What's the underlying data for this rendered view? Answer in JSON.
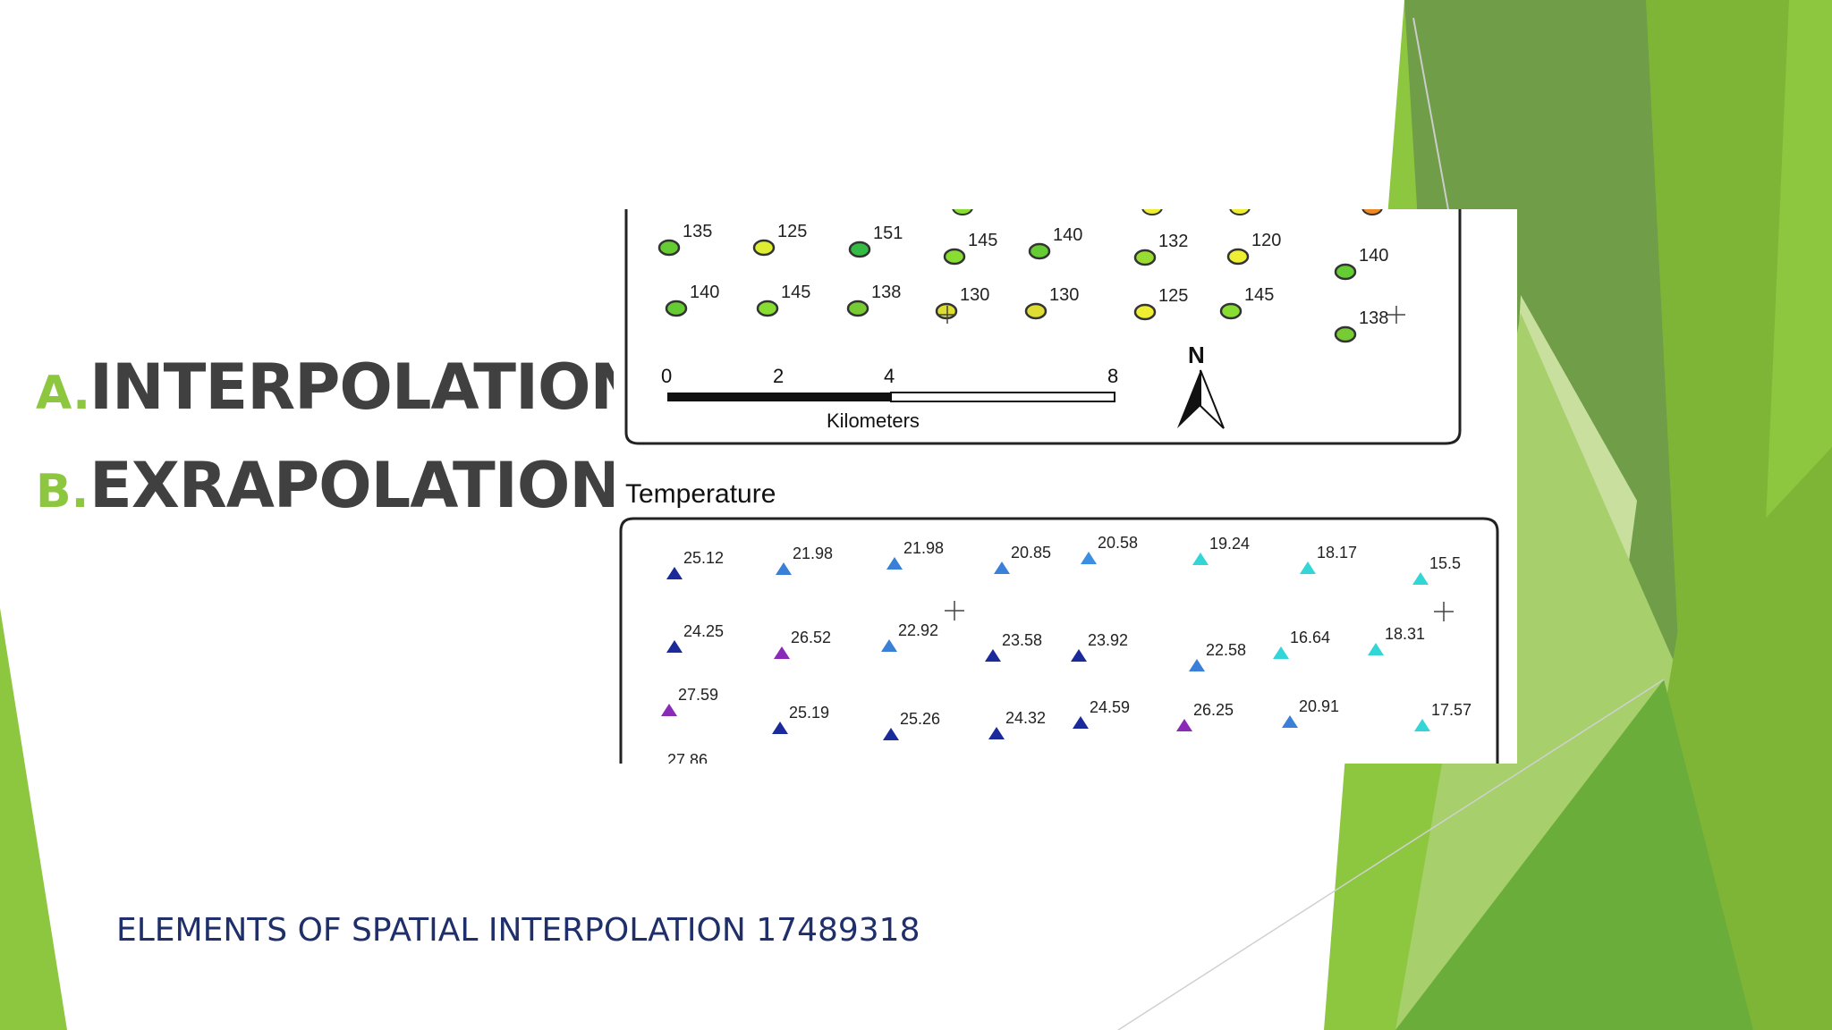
{
  "slide": {
    "bullets": [
      {
        "letter": "A.",
        "text": "INTERPOLATION"
      },
      {
        "letter": "B.",
        "text": "EXRAPOLATION"
      }
    ],
    "footer": "ELEMENTS OF SPATIAL INTERPOLATION 17489318",
    "accent_color": "#8dc63f"
  },
  "map": {
    "scale_bar": {
      "ticks": [
        "0",
        "2",
        "4",
        "8"
      ],
      "unit": "Kilometers"
    },
    "north_label": "N",
    "top_points": [
      {
        "v": "135",
        "c": "#66cc33"
      },
      {
        "v": "125",
        "c": "#ddee33"
      },
      {
        "v": "151",
        "c": "#33bb44"
      },
      {
        "v": "145",
        "c": "#88dd33"
      },
      {
        "v": "140",
        "c": "#66cc33"
      },
      {
        "v": "132",
        "c": "#99dd33"
      },
      {
        "v": "120",
        "c": "#eeee33"
      },
      {
        "v": "140",
        "c": "#66cc33"
      },
      {
        "v": "140",
        "c": "#66cc33"
      },
      {
        "v": "145",
        "c": "#88dd33"
      },
      {
        "v": "138",
        "c": "#77cc33"
      },
      {
        "v": "130",
        "c": "#dddd33"
      },
      {
        "v": "130",
        "c": "#dddd33"
      },
      {
        "v": "125",
        "c": "#eeee33"
      },
      {
        "v": "145",
        "c": "#88dd33"
      },
      {
        "v": "138",
        "c": "#77cc33"
      }
    ],
    "temperature_title": "Temperature",
    "temp_points": [
      {
        "v": "25.12",
        "c": "#1a2a9a"
      },
      {
        "v": "21.98",
        "c": "#3a7fd8"
      },
      {
        "v": "21.98",
        "c": "#3a7fd8"
      },
      {
        "v": "20.85",
        "c": "#3a7fd8"
      },
      {
        "v": "20.58",
        "c": "#3a8fe0"
      },
      {
        "v": "19.24",
        "c": "#33d6d6"
      },
      {
        "v": "18.17",
        "c": "#33d6d6"
      },
      {
        "v": "15.5",
        "c": "#33d6d6"
      },
      {
        "v": "24.25",
        "c": "#1a2a9a"
      },
      {
        "v": "26.52",
        "c": "#8a2ab8"
      },
      {
        "v": "22.92",
        "c": "#3a7fd8"
      },
      {
        "v": "23.58",
        "c": "#1a2a9a"
      },
      {
        "v": "23.92",
        "c": "#1a2a9a"
      },
      {
        "v": "22.58",
        "c": "#3a7fd8"
      },
      {
        "v": "16.64",
        "c": "#33d6d6"
      },
      {
        "v": "18.31",
        "c": "#33d6d6"
      },
      {
        "v": "27.59",
        "c": "#8a2ab8"
      },
      {
        "v": "25.19",
        "c": "#1a2a9a"
      },
      {
        "v": "25.26",
        "c": "#1a2a9a"
      },
      {
        "v": "24.32",
        "c": "#1a2a9a"
      },
      {
        "v": "24.59",
        "c": "#1a2a9a"
      },
      {
        "v": "26.25",
        "c": "#8a2ab8"
      },
      {
        "v": "20.91",
        "c": "#3a7fd8"
      },
      {
        "v": "17.57",
        "c": "#33d6d6"
      }
    ]
  }
}
